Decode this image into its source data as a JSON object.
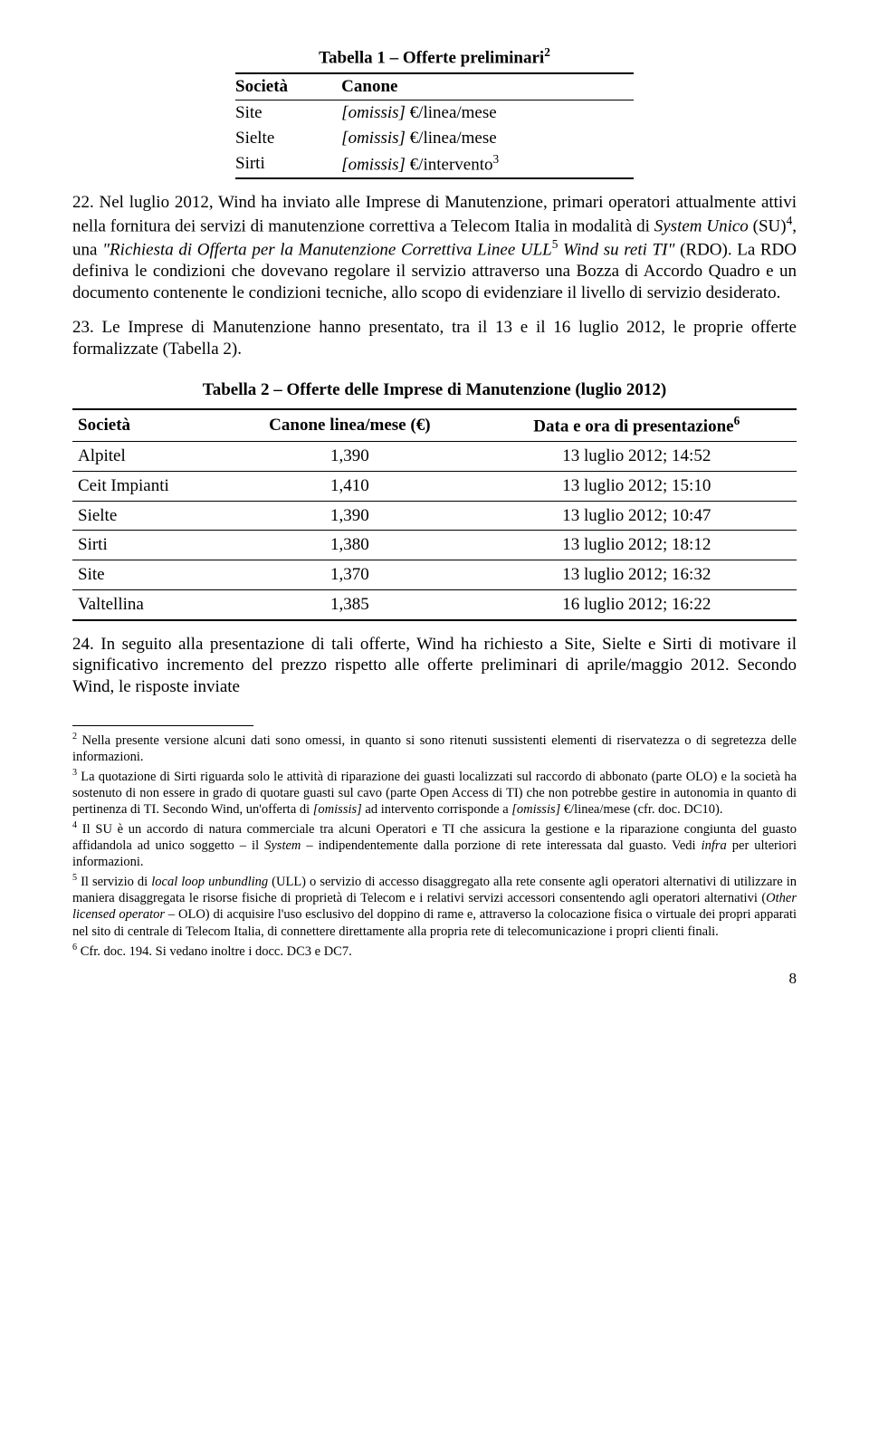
{
  "table1": {
    "title_pre": "Tabella 1 – Offerte preliminari",
    "title_sup": "2",
    "headers": [
      "Società",
      "Canone"
    ],
    "rows": [
      {
        "c1": "Site",
        "c2_pre": "[omissis]",
        "c2_post": " €/linea/mese",
        "sup": ""
      },
      {
        "c1": "Sielte",
        "c2_pre": "[omissis]",
        "c2_post": " €/linea/mese",
        "sup": ""
      },
      {
        "c1": "Sirti",
        "c2_pre": "[omissis]",
        "c2_post": " €/intervento",
        "sup": "3"
      }
    ]
  },
  "para22_num": "22.",
  "para22_a": "   Nel luglio 2012, Wind ha inviato alle Imprese di Manutenzione, primari operatori attualmente attivi nella fornitura dei servizi di manutenzione correttiva a Telecom Italia in modalità di ",
  "para22_i1": "System Unico",
  "para22_b": " (SU)",
  "para22_sup1": "4",
  "para22_c": ", una ",
  "para22_q1": "\"Richiesta di Offerta per la Manutenzione Correttiva Linee ULL",
  "para22_sup2": "5",
  "para22_q2": " Wind su reti TI\"",
  "para22_d": " (RDO). La RDO definiva le condizioni che dovevano regolare il servizio attraverso una Bozza di Accordo Quadro e un documento contenente le condizioni tecniche, allo scopo di evidenziare il livello di servizio desiderato.",
  "para23_num": "23.",
  "para23": "   Le Imprese di Manutenzione hanno presentato, tra il 13 e il 16 luglio 2012, le proprie offerte formalizzate (Tabella 2).",
  "table2": {
    "title": "Tabella 2 – Offerte delle Imprese di Manutenzione (luglio 2012)",
    "headers": {
      "c1": "Società",
      "c2": "Canone linea/mese (€)",
      "c3_pre": "Data e ora di presentazione",
      "c3_sup": "6"
    },
    "rows": [
      {
        "c1": "Alpitel",
        "c2": "1,390",
        "c3": "13 luglio 2012; 14:52"
      },
      {
        "c1": "Ceit Impianti",
        "c2": "1,410",
        "c3": "13 luglio 2012; 15:10"
      },
      {
        "c1": "Sielte",
        "c2": "1,390",
        "c3": "13 luglio 2012; 10:47"
      },
      {
        "c1": "Sirti",
        "c2": "1,380",
        "c3": "13 luglio 2012; 18:12"
      },
      {
        "c1": "Site",
        "c2": "1,370",
        "c3": "13 luglio 2012; 16:32"
      },
      {
        "c1": "Valtellina",
        "c2": "1,385",
        "c3": "16 luglio 2012; 16:22"
      }
    ]
  },
  "para24_num": "24.",
  "para24": "   In seguito alla presentazione di tali offerte, Wind ha richiesto a Site, Sielte e Sirti di motivare il significativo incremento del prezzo rispetto alle offerte preliminari di aprile/maggio 2012. Secondo Wind, le risposte inviate",
  "fn2_sup": "2",
  "fn2": " Nella presente versione alcuni dati sono omessi, in quanto si sono ritenuti sussistenti elementi di riservatezza o di segretezza delle informazioni.",
  "fn3_sup": "3",
  "fn3_a": " La quotazione di Sirti riguarda solo le attività di riparazione dei guasti localizzati sul raccordo di abbonato (parte OLO) e la società ha sostenuto di non essere in grado di quotare guasti sul cavo (parte Open Access di TI) che non potrebbe gestire in autonomia in quanto di pertinenza di TI. Secondo Wind, un'offerta di ",
  "fn3_i1": "[omissis]",
  "fn3_b": " ad intervento corrisponde a ",
  "fn3_i2": "[omissis]",
  "fn3_c": " €/linea/mese (cfr. doc. DC10).",
  "fn4_sup": "4",
  "fn4_a": " Il SU è un accordo di natura commerciale tra alcuni Operatori e TI che assicura la gestione e la riparazione congiunta del guasto affidandola ad unico soggetto – il ",
  "fn4_i1": "System",
  "fn4_b": " – indipendentemente dalla porzione di rete interessata dal guasto. Vedi ",
  "fn4_i2": "infra",
  "fn4_c": " per ulteriori informazioni.",
  "fn5_sup": "5",
  "fn5_a": " Il servizio di ",
  "fn5_i1": "local loop unbundling",
  "fn5_b": " (ULL) o servizio di accesso disaggregato alla rete consente agli operatori alternativi di utilizzare in maniera disaggregata le risorse fisiche di proprietà di Telecom e i relativi servizi accessori consentendo agli operatori alternativi (",
  "fn5_i2": "Other licensed operator",
  "fn5_c": " – OLO) di acquisire l'uso esclusivo del doppino di rame e, attraverso la colocazione fisica o virtuale dei propri apparati nel sito di centrale di Telecom Italia, di connettere direttamente alla propria rete di telecomunicazione i propri clienti finali.",
  "fn6_sup": "6",
  "fn6": " Cfr. doc. 194. Si vedano inoltre i docc. DC3 e DC7.",
  "page_number": "8"
}
